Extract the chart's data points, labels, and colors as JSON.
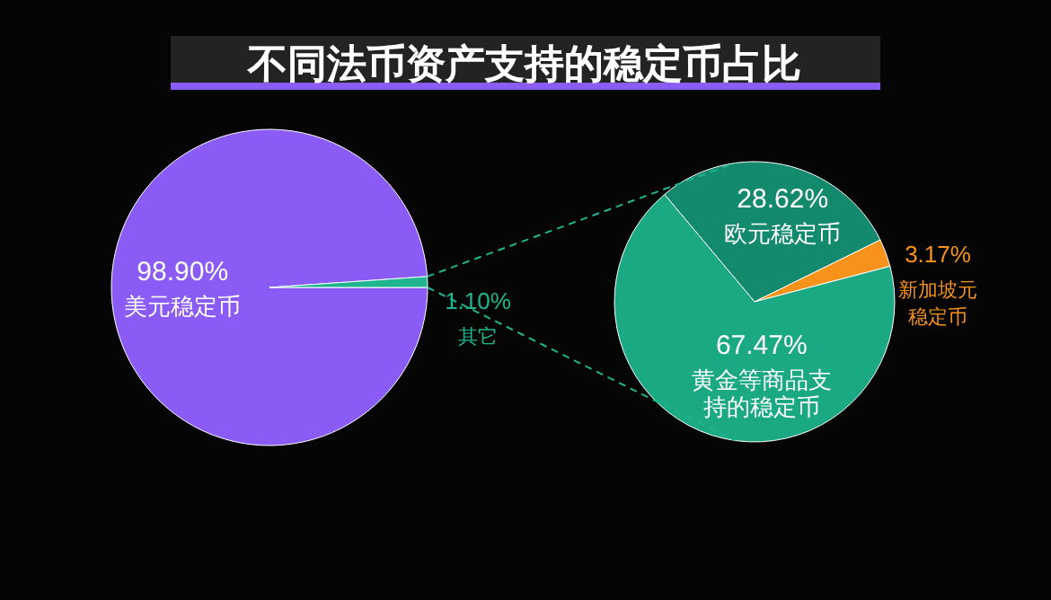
{
  "chart_data": [
    {
      "type": "pie",
      "title": "不同法币资产支持的稳定币占比",
      "categories": [
        "美元稳定币",
        "其它"
      ],
      "values": [
        98.9,
        1.1
      ],
      "value_labels": [
        "98.90%",
        "1.10%"
      ],
      "colors": [
        "#8a5cf5",
        "#1fb58f"
      ]
    },
    {
      "type": "pie",
      "categories": [
        "欧元稳定币",
        "新加坡元稳定币",
        "黄金等商品支持的稳定币"
      ],
      "values": [
        28.62,
        3.17,
        67.47
      ],
      "value_labels": [
        "28.62%",
        "3.17%",
        "67.47%"
      ],
      "colors": [
        "#138a6d",
        "#f7931a",
        "#1aa982"
      ]
    }
  ]
}
